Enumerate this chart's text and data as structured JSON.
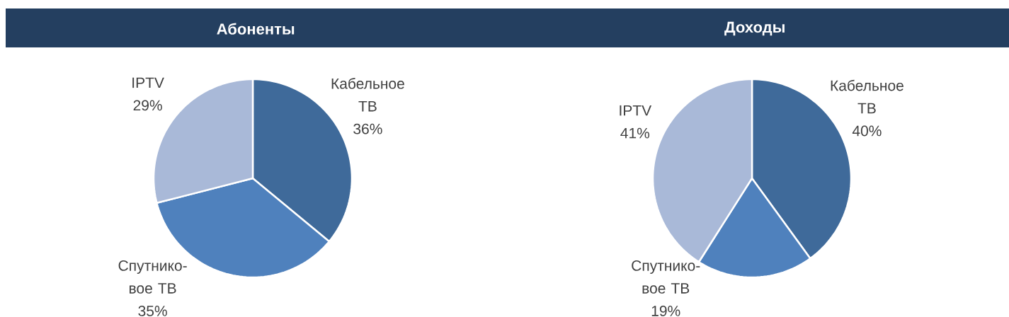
{
  "chart_data": [
    {
      "type": "pie",
      "title": "Абоненты",
      "categories": [
        "Кабельное ТВ",
        "Спутнико-вое ТВ",
        "IPTV"
      ],
      "values": [
        36,
        35,
        29
      ],
      "colors": [
        "#3f6a9a",
        "#4f81bd",
        "#a9b9d8"
      ],
      "value_labels": [
        "36%",
        "35%",
        "29%"
      ]
    },
    {
      "type": "pie",
      "title": "Доходы",
      "categories": [
        "Кабельное ТВ",
        "Спутнико-вое ТВ",
        "IPTV"
      ],
      "values": [
        40,
        19,
        41
      ],
      "colors": [
        "#3f6a9a",
        "#4f81bd",
        "#a9b9d8"
      ],
      "value_labels": [
        "40%",
        "19%",
        "41%"
      ]
    }
  ]
}
